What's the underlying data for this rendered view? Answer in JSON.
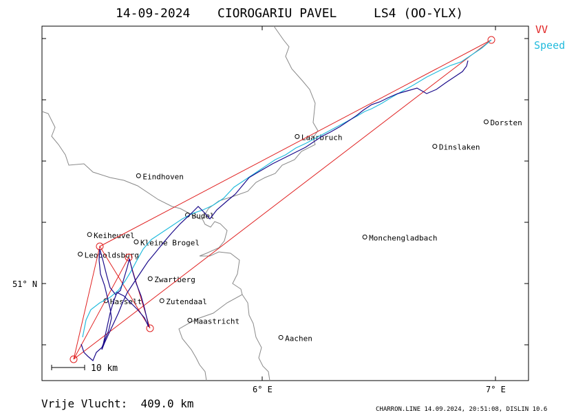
{
  "header": {
    "date": "14-09-2024",
    "pilot": "CIOROGARIU PAVEL",
    "glider": "LS4 (OO-YLX)"
  },
  "legend": [
    {
      "label": "VV",
      "color": "#e02020"
    },
    {
      "label": "Speed",
      "color": "#22bbdd"
    }
  ],
  "axes": {
    "lat_label": "51° N",
    "lon_labels": [
      "6° E",
      "7° E"
    ]
  },
  "scale": {
    "label": "10 km"
  },
  "places": [
    {
      "name": "Dorsten",
      "lon": 6.96,
      "lat": 51.66
    },
    {
      "name": "Dinslaken",
      "lon": 6.74,
      "lat": 51.56
    },
    {
      "name": "Laarbruch",
      "lon": 6.15,
      "lat": 51.6
    },
    {
      "name": "Eindhoven",
      "lon": 5.47,
      "lat": 51.44
    },
    {
      "name": "Budel",
      "lon": 5.68,
      "lat": 51.28
    },
    {
      "name": "Monchengladbach",
      "lon": 6.44,
      "lat": 51.19
    },
    {
      "name": "Keiheuvel",
      "lon": 5.26,
      "lat": 51.2
    },
    {
      "name": "Kleine Brogel",
      "lon": 5.46,
      "lat": 51.17
    },
    {
      "name": "Leopoldsburg",
      "lon": 5.22,
      "lat": 51.12
    },
    {
      "name": "Zwartberg",
      "lon": 5.52,
      "lat": 51.02
    },
    {
      "name": "Hasselt",
      "lon": 5.33,
      "lat": 50.93
    },
    {
      "name": "Zutendaal",
      "lon": 5.57,
      "lat": 50.93
    },
    {
      "name": "Maastricht",
      "lon": 5.69,
      "lat": 50.85
    },
    {
      "name": "Aachen",
      "lon": 6.08,
      "lat": 50.78
    }
  ],
  "footer": {
    "distance": "Vrije Vlucht:  409.0 km",
    "credit": "CHARRON.LINE 14.09.2024, 20:51:08, DISLIN 10.6"
  },
  "colors": {
    "task": "#e02020",
    "track": "#1a0a8a",
    "speed": "#22bbdd",
    "border": "#888888",
    "frame": "#000000"
  }
}
